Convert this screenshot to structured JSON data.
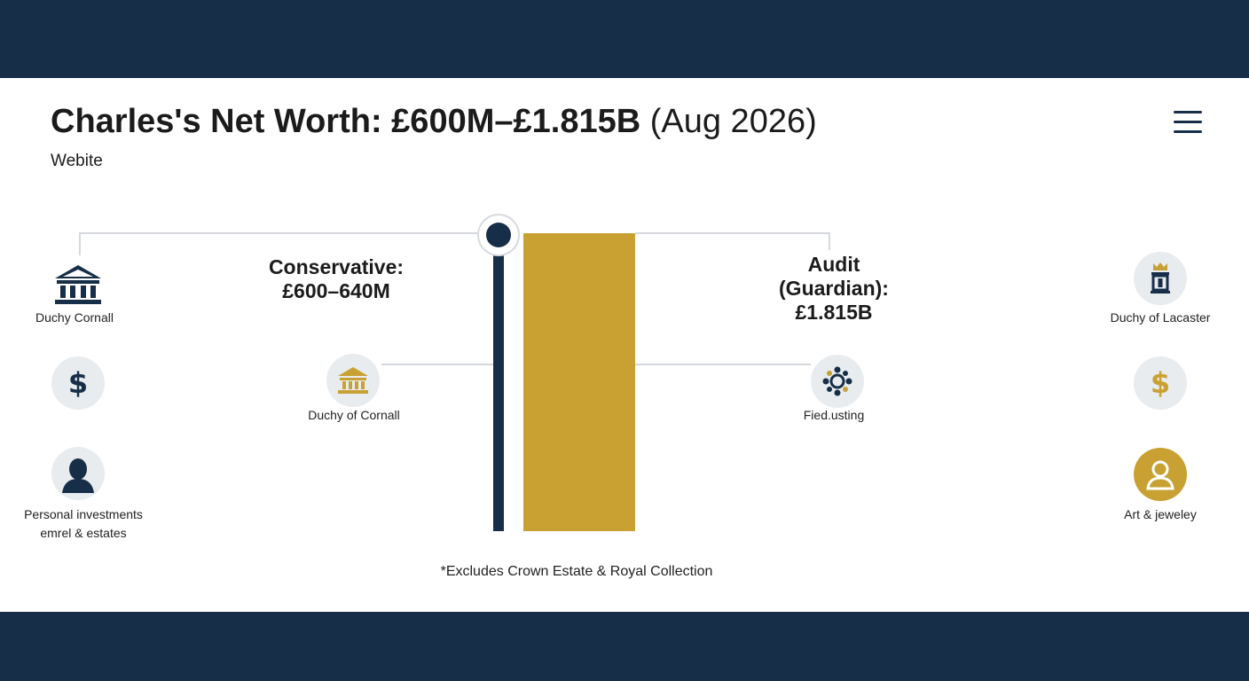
{
  "header": {
    "title_main": "Charles's Net Worth: £600M–£1.815B",
    "title_date": "(Aug 2026)",
    "subtitle": "Webite"
  },
  "menu": {
    "icon": "hamburger-menu-icon"
  },
  "left_column": [
    {
      "icon": "bank-building-icon",
      "label": "Duchy Cornall"
    },
    {
      "icon": "dollar-icon",
      "label": ""
    },
    {
      "icon": "person-icon",
      "label_line1": "Personal investments",
      "label_line2": "emrel & estates"
    }
  ],
  "conservative": {
    "line1": "Conservative:",
    "line2": "£600–640M",
    "icon": "bank-building-icon",
    "label": "Duchy of Cornall"
  },
  "audit": {
    "line1": "Audit",
    "line2": "(Guardian):",
    "line3": "£1.815B",
    "icon": "gear-network-icon",
    "label": "Fied.usting"
  },
  "right_column": [
    {
      "icon": "crown-pillar-icon",
      "label": "Duchy of Lacaster"
    },
    {
      "icon": "dollar-icon",
      "label": ""
    },
    {
      "icon": "person-icon",
      "label": "Art & jeweley"
    }
  ],
  "chart_data": {
    "type": "bar",
    "categories": [
      "Conservative",
      "Audit (Guardian)"
    ],
    "values": [
      640,
      1815
    ],
    "unit": "£M",
    "colors": {
      "conservative": "#172e48",
      "audit": "#c9a133"
    }
  },
  "footnote": "*Excludes Crown Estate & Royal Collection",
  "colors": {
    "navy": "#172e48",
    "gold": "#c9a133",
    "icon_bg": "#e9ecef"
  }
}
